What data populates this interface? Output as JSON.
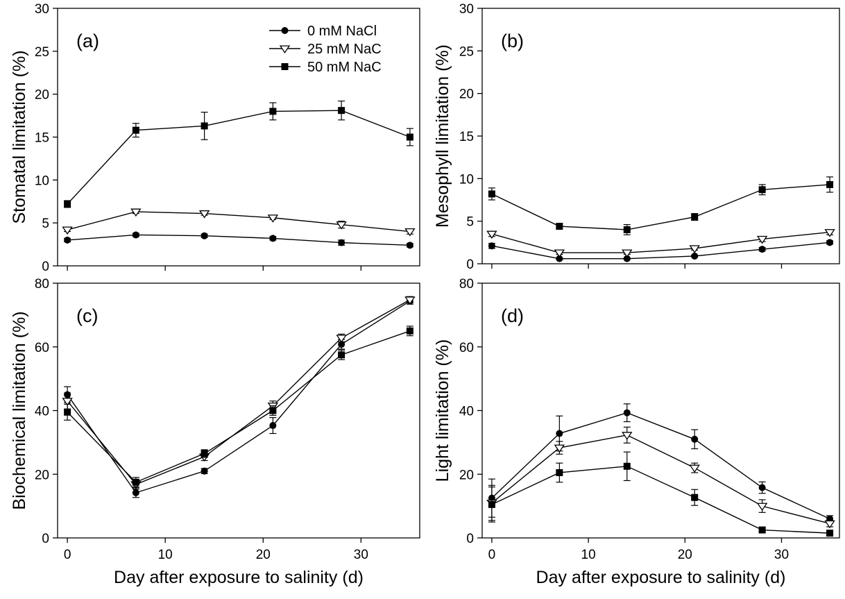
{
  "chart_data": [
    {
      "id": "a",
      "type": "line",
      "panel_label": "(a)",
      "ylabel": "Stomatal limitation (%)",
      "xlabel": "",
      "xlim": [
        -1,
        36
      ],
      "ylim": [
        0,
        30
      ],
      "xticks": [
        0,
        10,
        20,
        30
      ],
      "yticks": [
        0,
        5,
        10,
        15,
        20,
        25,
        30
      ],
      "x": [
        0,
        7,
        14,
        21,
        28,
        35
      ],
      "series": [
        {
          "name": "0 mM NaCl",
          "marker": "circle",
          "values": [
            3.0,
            3.6,
            3.5,
            3.2,
            2.7,
            2.4
          ],
          "errors": [
            0.2,
            0.2,
            0.2,
            0.2,
            0.3,
            0.2
          ]
        },
        {
          "name": "25 mM NaC",
          "marker": "triangle-down",
          "values": [
            4.2,
            6.3,
            6.1,
            5.6,
            4.8,
            4.0
          ],
          "errors": [
            0.2,
            0.2,
            0.2,
            0.2,
            0.4,
            0.3
          ]
        },
        {
          "name": "50 mM NaC",
          "marker": "square",
          "values": [
            7.2,
            15.8,
            16.3,
            18.0,
            18.1,
            15.0
          ],
          "errors": [
            0.4,
            0.8,
            1.6,
            1.0,
            1.1,
            1.0
          ]
        }
      ],
      "legend": {
        "placement": "top-center"
      }
    },
    {
      "id": "b",
      "type": "line",
      "panel_label": "(b)",
      "ylabel": "Mesophyll limitation (%)",
      "xlabel": "",
      "xlim": [
        -1,
        36
      ],
      "ylim": [
        0,
        30
      ],
      "xticks": [
        0,
        10,
        20,
        30
      ],
      "yticks": [
        0,
        5,
        10,
        15,
        20,
        25,
        30
      ],
      "x": [
        0,
        7,
        14,
        21,
        28,
        35
      ],
      "series": [
        {
          "name": "0 mM NaCl",
          "marker": "circle",
          "values": [
            2.1,
            0.6,
            0.6,
            0.9,
            1.7,
            2.5
          ],
          "errors": [
            0.3,
            0.1,
            0.1,
            0.1,
            0.2,
            0.2
          ]
        },
        {
          "name": "25 mM NaC",
          "marker": "triangle-down",
          "values": [
            3.5,
            1.3,
            1.3,
            1.8,
            2.9,
            3.7
          ],
          "errors": [
            0.3,
            0.2,
            0.2,
            0.2,
            0.3,
            0.3
          ]
        },
        {
          "name": "50 mM NaC",
          "marker": "square",
          "values": [
            8.2,
            4.4,
            4.0,
            5.5,
            8.7,
            9.3
          ],
          "errors": [
            0.7,
            0.3,
            0.6,
            0.4,
            0.6,
            0.9
          ]
        }
      ]
    },
    {
      "id": "c",
      "type": "line",
      "panel_label": "(c)",
      "ylabel": "Biochemical limitation (%)",
      "xlabel": "Day after exposure to salinity (d)",
      "xlim": [
        -1,
        36
      ],
      "ylim": [
        0,
        80
      ],
      "xticks": [
        0,
        10,
        20,
        30
      ],
      "yticks": [
        0,
        20,
        40,
        60,
        80
      ],
      "x": [
        0,
        7,
        14,
        21,
        28,
        35
      ],
      "series": [
        {
          "name": "0 mM NaCl",
          "marker": "circle",
          "values": [
            45.0,
            14.2,
            21.0,
            35.3,
            60.8,
            74.4
          ],
          "errors": [
            2.5,
            1.5,
            0.8,
            2.5,
            1.5,
            1.0
          ]
        },
        {
          "name": "25 mM NaC",
          "marker": "triangle-down",
          "values": [
            43.0,
            16.8,
            25.5,
            41.5,
            62.8,
            74.8
          ],
          "errors": [
            2.5,
            1.5,
            1.2,
            1.5,
            1.2,
            1.0
          ]
        },
        {
          "name": "50 mM NaC",
          "marker": "square",
          "values": [
            39.5,
            17.5,
            26.5,
            40.0,
            57.5,
            65.0
          ],
          "errors": [
            2.5,
            1.5,
            1.2,
            1.5,
            1.5,
            1.5
          ]
        }
      ]
    },
    {
      "id": "d",
      "type": "line",
      "panel_label": "(d)",
      "ylabel": "Light limitation (%)",
      "xlabel": "Day after exposure to salinity (d)",
      "xlim": [
        -1,
        36
      ],
      "ylim": [
        0,
        80
      ],
      "xticks": [
        0,
        10,
        20,
        30
      ],
      "yticks": [
        0,
        20,
        40,
        60,
        80
      ],
      "x": [
        0,
        7,
        14,
        21,
        28,
        35
      ],
      "series": [
        {
          "name": "0 mM NaCl",
          "marker": "circle",
          "values": [
            12.5,
            32.8,
            39.3,
            31.0,
            15.8,
            6.0
          ],
          "errors": [
            6.0,
            5.5,
            2.8,
            3.0,
            1.8,
            1.0
          ]
        },
        {
          "name": "25 mM NaC",
          "marker": "triangle-down",
          "values": [
            11.0,
            28.3,
            32.3,
            22.0,
            10.0,
            4.5
          ],
          "errors": [
            5.5,
            2.0,
            2.5,
            1.5,
            2.0,
            1.0
          ]
        },
        {
          "name": "50 mM NaC",
          "marker": "square",
          "values": [
            10.5,
            20.5,
            22.5,
            12.7,
            2.5,
            1.5
          ],
          "errors": [
            5.5,
            3.0,
            4.5,
            2.5,
            0.8,
            0.5
          ]
        }
      ]
    }
  ]
}
